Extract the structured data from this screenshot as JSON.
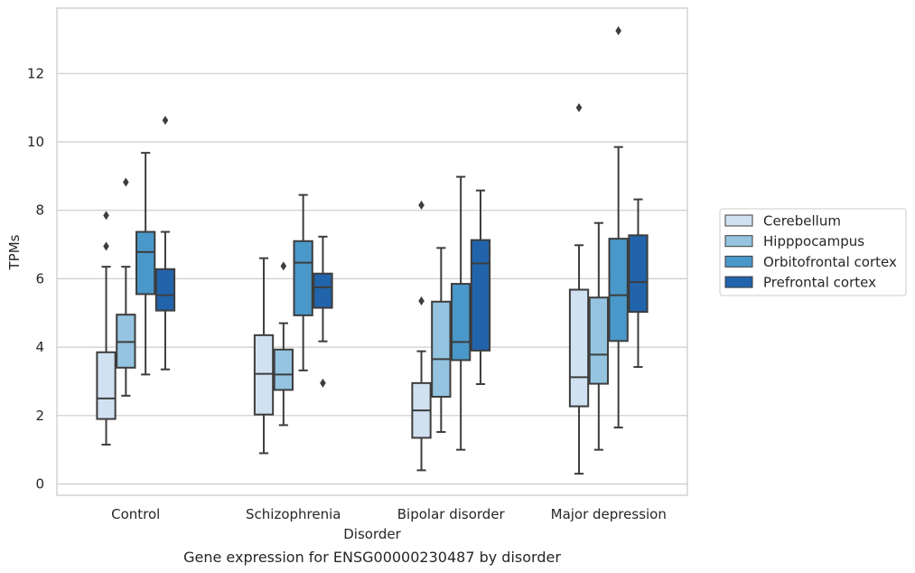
{
  "caption": "Gene expression for ENSG00000230487 by disorder",
  "chart_data": {
    "type": "box",
    "xlabel": "Disorder",
    "ylabel": "TPMs",
    "ylim": [
      -0.3,
      14.0
    ],
    "yticks": [
      0,
      2,
      4,
      6,
      8,
      10,
      12
    ],
    "grid": "horizontal",
    "legend_position": "right",
    "categories": [
      "Control",
      "Schizophrenia",
      "Bipolar disorder",
      "Major depression"
    ],
    "series": [
      {
        "name": "Cerebellum",
        "color": "#d0e1f2",
        "boxes": [
          {
            "whisker_low": 1.15,
            "q1": 1.9,
            "median": 2.5,
            "q3": 3.85,
            "whisker_high": 6.35,
            "outliers": [
              6.95,
              7.85
            ]
          },
          {
            "whisker_low": 0.9,
            "q1": 2.03,
            "median": 3.22,
            "q3": 4.35,
            "whisker_high": 6.6,
            "outliers": []
          },
          {
            "whisker_low": 0.4,
            "q1": 1.35,
            "median": 2.15,
            "q3": 2.95,
            "whisker_high": 3.88,
            "outliers": [
              5.35,
              8.15
            ]
          },
          {
            "whisker_low": 0.3,
            "q1": 2.27,
            "median": 3.12,
            "q3": 5.68,
            "whisker_high": 6.98,
            "outliers": [
              11.0
            ]
          }
        ]
      },
      {
        "name": "Hipppocampus",
        "color": "#94c4df",
        "boxes": [
          {
            "whisker_low": 2.58,
            "q1": 3.4,
            "median": 4.15,
            "q3": 4.95,
            "whisker_high": 6.35,
            "outliers": [
              8.82
            ]
          },
          {
            "whisker_low": 1.72,
            "q1": 2.75,
            "median": 3.2,
            "q3": 3.93,
            "whisker_high": 4.7,
            "outliers": [
              6.37
            ]
          },
          {
            "whisker_low": 1.52,
            "q1": 2.55,
            "median": 3.65,
            "q3": 5.33,
            "whisker_high": 6.9,
            "outliers": []
          },
          {
            "whisker_low": 1.0,
            "q1": 2.93,
            "median": 3.78,
            "q3": 5.45,
            "whisker_high": 7.63,
            "outliers": []
          }
        ]
      },
      {
        "name": "Orbitofrontal cortex",
        "color": "#4a98c9",
        "boxes": [
          {
            "whisker_low": 3.2,
            "q1": 5.55,
            "median": 6.78,
            "q3": 7.37,
            "whisker_high": 9.68,
            "outliers": []
          },
          {
            "whisker_low": 3.32,
            "q1": 4.93,
            "median": 6.47,
            "q3": 7.1,
            "whisker_high": 8.45,
            "outliers": []
          },
          {
            "whisker_low": 1.0,
            "q1": 3.62,
            "median": 4.15,
            "q3": 5.85,
            "whisker_high": 8.98,
            "outliers": []
          },
          {
            "whisker_low": 1.65,
            "q1": 4.18,
            "median": 5.52,
            "q3": 7.17,
            "whisker_high": 9.85,
            "outliers": [
              13.25
            ]
          }
        ]
      },
      {
        "name": "Prefrontal cortex",
        "color": "#2164ab",
        "boxes": [
          {
            "whisker_low": 3.35,
            "q1": 5.07,
            "median": 5.52,
            "q3": 6.28,
            "whisker_high": 7.37,
            "outliers": [
              10.63
            ]
          },
          {
            "whisker_low": 4.17,
            "q1": 5.15,
            "median": 5.75,
            "q3": 6.15,
            "whisker_high": 7.23,
            "outliers": [
              2.95
            ]
          },
          {
            "whisker_low": 2.92,
            "q1": 3.9,
            "median": 6.45,
            "q3": 7.13,
            "whisker_high": 8.58,
            "outliers": []
          },
          {
            "whisker_low": 3.42,
            "q1": 5.03,
            "median": 5.9,
            "q3": 7.27,
            "whisker_high": 8.32,
            "outliers": []
          }
        ]
      }
    ]
  }
}
